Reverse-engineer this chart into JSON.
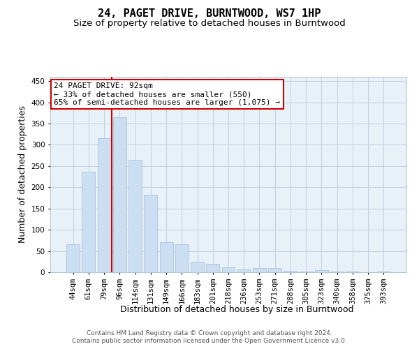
{
  "title": "24, PAGET DRIVE, BURNTWOOD, WS7 1HP",
  "subtitle": "Size of property relative to detached houses in Burntwood",
  "xlabel": "Distribution of detached houses by size in Burntwood",
  "ylabel": "Number of detached properties",
  "categories": [
    "44sqm",
    "61sqm",
    "79sqm",
    "96sqm",
    "114sqm",
    "131sqm",
    "149sqm",
    "166sqm",
    "183sqm",
    "201sqm",
    "218sqm",
    "236sqm",
    "253sqm",
    "271sqm",
    "288sqm",
    "305sqm",
    "323sqm",
    "340sqm",
    "358sqm",
    "375sqm",
    "393sqm"
  ],
  "values": [
    65,
    237,
    315,
    365,
    265,
    183,
    70,
    65,
    25,
    20,
    12,
    7,
    10,
    10,
    4,
    2,
    5,
    1,
    2,
    0,
    1
  ],
  "bar_color": "#ccdff2",
  "bar_edge_color": "#a8c4e0",
  "vline_x_index": 3,
  "vline_color": "#cc0000",
  "annotation_text": "24 PAGET DRIVE: 92sqm\n← 33% of detached houses are smaller (550)\n65% of semi-detached houses are larger (1,075) →",
  "annotation_box_color": "#ffffff",
  "annotation_box_edge_color": "#cc0000",
  "ylim": [
    0,
    460
  ],
  "yticks": [
    0,
    50,
    100,
    150,
    200,
    250,
    300,
    350,
    400,
    450
  ],
  "footer1": "Contains HM Land Registry data © Crown copyright and database right 2024.",
  "footer2": "Contains public sector information licensed under the Open Government Licence v3.0.",
  "background_color": "#ffffff",
  "plot_bg_color": "#e8f0f8",
  "grid_color": "#c0d0e0",
  "title_fontsize": 11,
  "subtitle_fontsize": 9.5,
  "axis_label_fontsize": 9,
  "tick_fontsize": 7.5,
  "footer_fontsize": 6.5,
  "annotation_fontsize": 8
}
